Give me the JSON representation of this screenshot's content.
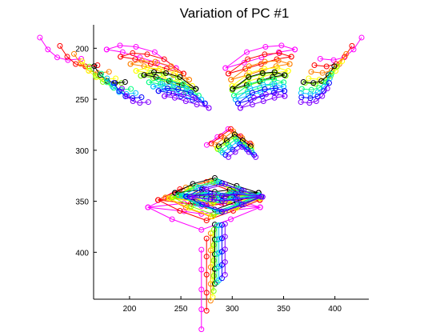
{
  "chart_data": {
    "type": "scatter",
    "title": "Variation of PC #1",
    "xlabel": "",
    "ylabel": "",
    "xlim": [
      165,
      433
    ],
    "ylim": [
      446,
      177
    ],
    "y_reversed": true,
    "grid": false,
    "legend": "none",
    "x_ticks": [
      200,
      250,
      300,
      350,
      400
    ],
    "y_ticks": [
      200,
      250,
      300,
      350,
      400
    ],
    "marker": "circle-open",
    "series": [
      {
        "color": "#ff00ff",
        "offset": [
          -13,
          0
        ],
        "scale": 1.3
      },
      {
        "color": "#ff0000",
        "offset": [
          -8,
          -2
        ],
        "scale": 1.18
      },
      {
        "color": "#ff8000",
        "offset": [
          -4,
          -1
        ],
        "scale": 1.1
      },
      {
        "color": "#ffff00",
        "offset": [
          -2,
          2
        ],
        "scale": 1.05
      },
      {
        "color": "#80ff00",
        "offset": [
          -1,
          3
        ],
        "scale": 1.0
      },
      {
        "color": "#000000",
        "offset": [
          0,
          0
        ],
        "scale": 0.97
      },
      {
        "color": "#00ff80",
        "offset": [
          2,
          4
        ],
        "scale": 0.93
      },
      {
        "color": "#00c0ff",
        "offset": [
          4,
          6
        ],
        "scale": 0.9
      },
      {
        "color": "#0000ff",
        "offset": [
          7,
          8
        ],
        "scale": 0.87
      },
      {
        "color": "#8000ff",
        "offset": [
          10,
          10
        ],
        "scale": 0.83
      }
    ],
    "mean_shape": {
      "left_brow": [
        [
          162,
          215
        ],
        [
          168,
          224
        ],
        [
          175,
          230
        ],
        [
          183,
          232
        ],
        [
          193,
          231
        ]
      ],
      "right_brow": [
        [
          403,
          215
        ],
        [
          397,
          224
        ],
        [
          390,
          230
        ],
        [
          382,
          232
        ],
        [
          372,
          231
        ]
      ],
      "left_eye": [
        [
          212,
          224
        ],
        [
          224,
          226
        ],
        [
          237,
          230
        ],
        [
          250,
          234
        ],
        [
          264,
          238
        ]
      ],
      "left_eye_upper": [
        [
          212,
          224
        ],
        [
          222,
          221
        ],
        [
          234,
          222
        ],
        [
          248,
          226
        ],
        [
          264,
          238
        ]
      ],
      "right_eye": [
        [
          353,
          224
        ],
        [
          341,
          226
        ],
        [
          328,
          230
        ],
        [
          315,
          234
        ],
        [
          301,
          238
        ]
      ],
      "right_eye_upper": [
        [
          353,
          224
        ],
        [
          343,
          221
        ],
        [
          331,
          222
        ],
        [
          317,
          226
        ],
        [
          301,
          238
        ]
      ],
      "nose": [
        [
          287,
          296
        ],
        [
          295,
          290
        ],
        [
          303,
          284
        ],
        [
          311,
          290
        ],
        [
          319,
          296
        ]
      ],
      "mouth": [
        [
          243,
          343
        ],
        [
          261,
          334
        ],
        [
          283,
          328
        ],
        [
          305,
          336
        ],
        [
          327,
          343
        ],
        [
          305,
          352
        ],
        [
          283,
          360
        ],
        [
          261,
          352
        ]
      ],
      "upper_lip": [
        [
          243,
          343
        ],
        [
          270,
          340
        ],
        [
          283,
          342
        ],
        [
          298,
          340
        ],
        [
          327,
          343
        ]
      ],
      "lower_lip": [
        [
          243,
          343
        ],
        [
          270,
          346
        ],
        [
          283,
          348
        ],
        [
          298,
          346
        ],
        [
          327,
          343
        ]
      ],
      "chin": [
        [
          283,
          375
        ],
        [
          283,
          390
        ],
        [
          283,
          405
        ],
        [
          283,
          420
        ],
        [
          283,
          435
        ]
      ]
    }
  }
}
